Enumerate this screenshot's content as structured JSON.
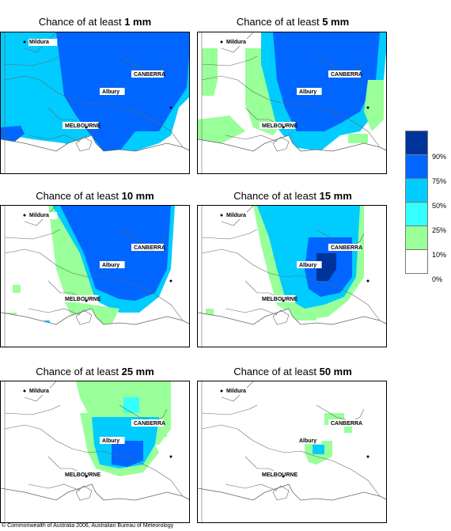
{
  "panels": [
    {
      "prefix": "Chance of at least ",
      "amount": "1 mm"
    },
    {
      "prefix": "Chance of at least ",
      "amount": "5 mm"
    },
    {
      "prefix": "Chance of at least ",
      "amount": "10 mm"
    },
    {
      "prefix": "Chance of at least ",
      "amount": "15 mm"
    },
    {
      "prefix": "Chance of at least ",
      "amount": "25 mm"
    },
    {
      "prefix": "Chance of at least ",
      "amount": "50 mm"
    }
  ],
  "places": {
    "mildura": "Mildura",
    "canberra": "CANBERRA",
    "albury": "Albury",
    "melbourne": "MELBOURNE"
  },
  "legend": {
    "labels": [
      "90%",
      "75%",
      "50%",
      "25%",
      "10%",
      "0%"
    ],
    "colors": [
      "#00339a",
      "#0066ff",
      "#00ccff",
      "#33ffff",
      "#99ff99",
      "#ffffff"
    ]
  },
  "copyright": "© Commonwealth of Australia 2006, Australian Bureau of Meteorology"
}
